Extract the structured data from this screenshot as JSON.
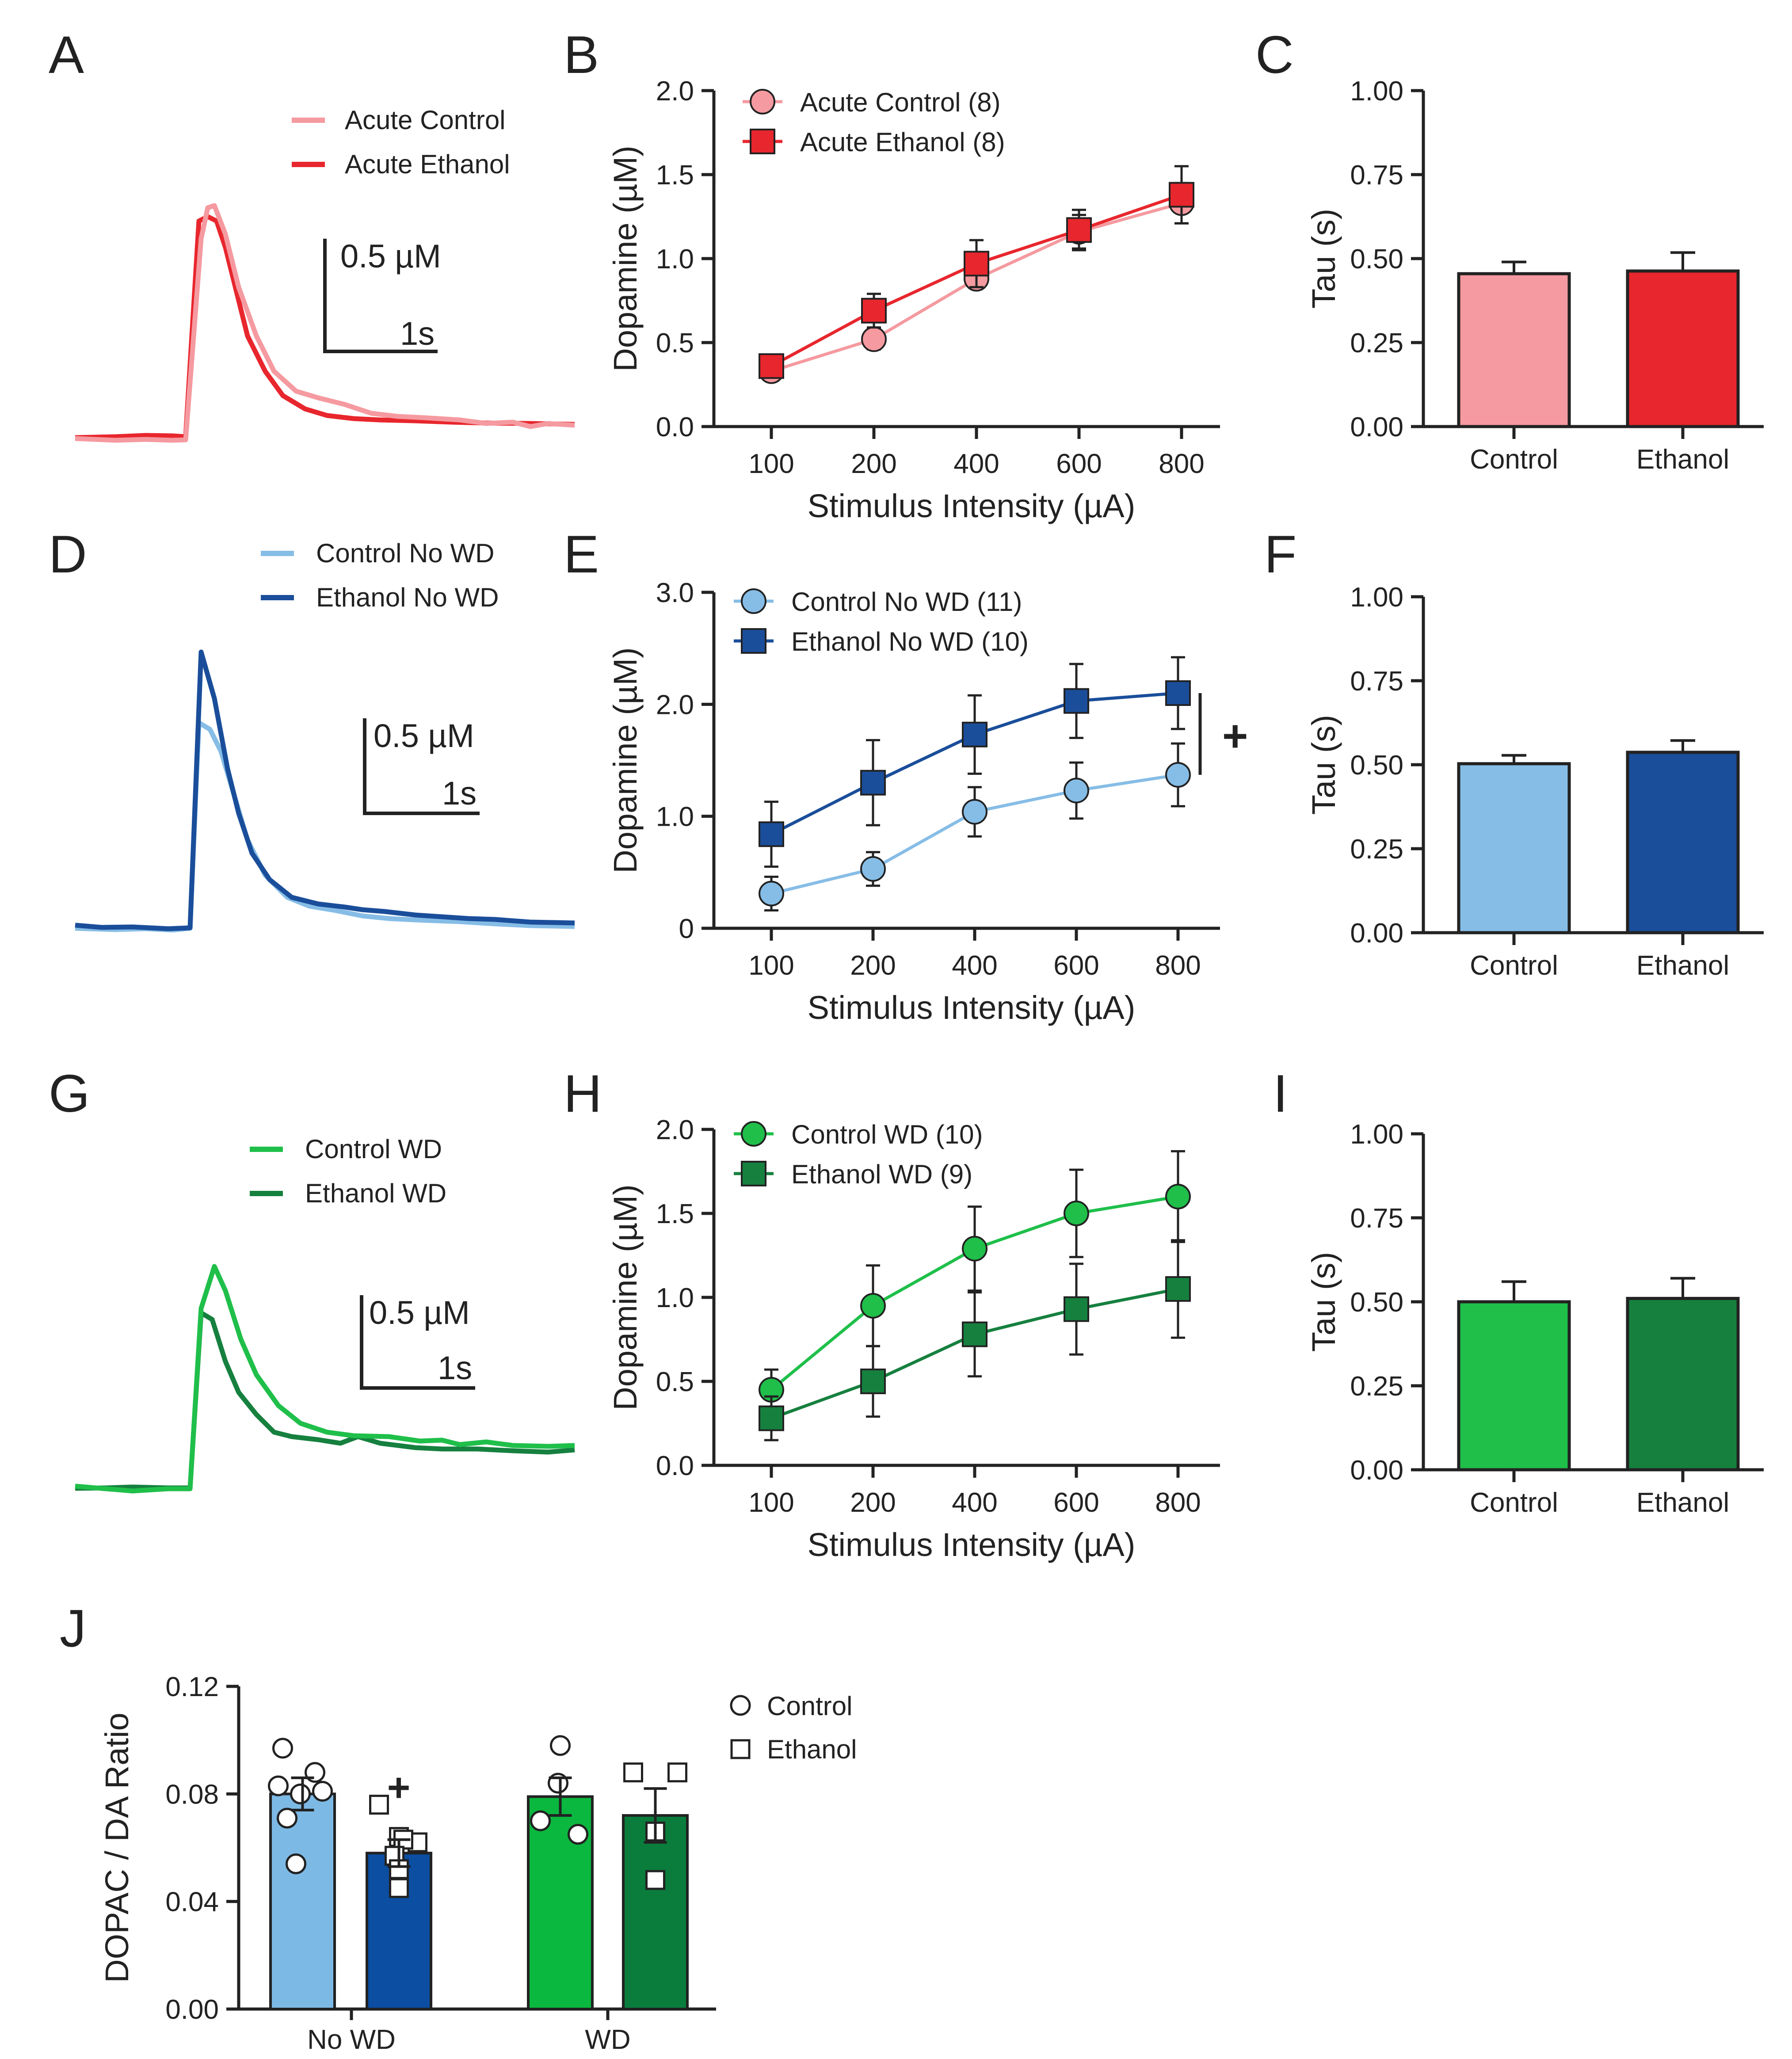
{
  "colors": {
    "acute_control": "#f59aa0",
    "acute_ethanol": "#e8262d",
    "nowd_control": "#86bde6",
    "nowd_ethanol": "#1a4e9a",
    "wd_control": "#1fbf4a",
    "wd_ethanol": "#16803f",
    "j_control": "#7db9e5",
    "j_ethanol": "#0b4ea2",
    "j_wd_control": "#0ab83f",
    "j_wd_ethanol": "#0a7d3c"
  },
  "panel_labels": [
    "A",
    "B",
    "C",
    "D",
    "E",
    "F",
    "G",
    "H",
    "I",
    "J"
  ],
  "traces": [
    {
      "panel": "A",
      "legend": [
        "Acute Control",
        "Acute Ethanol"
      ],
      "scale_y": "0.5 µM",
      "scale_x": "1s"
    },
    {
      "panel": "D",
      "legend": [
        "Control No WD",
        "Ethanol No WD"
      ],
      "scale_y": "0.5 µM",
      "scale_x": "1s"
    },
    {
      "panel": "G",
      "legend": [
        "Control WD",
        "Ethanol WD"
      ],
      "scale_y": "0.5 µM",
      "scale_x": "1s"
    }
  ],
  "chart_data": [
    {
      "panel": "B",
      "type": "line",
      "categories": [
        "100",
        "200",
        "400",
        "600",
        "800"
      ],
      "ylabel": "Dopamine (µM)",
      "xlabel": "Stimulus Intensity (µA)",
      "ylim": [
        0,
        2.0
      ],
      "yticks": [
        "0.0",
        "0.5",
        "1.0",
        "1.5",
        "2.0"
      ],
      "series": [
        {
          "name": "Acute Control (8)",
          "marker": "circle",
          "values": [
            0.33,
            0.52,
            0.88,
            1.16,
            1.33
          ],
          "err": [
            0.03,
            0.06,
            0.05,
            0.1,
            0.12
          ]
        },
        {
          "name": "Acute Ethanol (8)",
          "marker": "square",
          "values": [
            0.36,
            0.69,
            0.97,
            1.17,
            1.38
          ],
          "err": [
            0.04,
            0.1,
            0.14,
            0.12,
            0.17
          ]
        }
      ],
      "annotation": ""
    },
    {
      "panel": "E",
      "type": "line",
      "categories": [
        "100",
        "200",
        "400",
        "600",
        "800"
      ],
      "ylabel": "Dopamine (µM)",
      "xlabel": "Stimulus Intensity (µA)",
      "ylim": [
        0,
        3.0
      ],
      "yticks": [
        "0",
        "1.0",
        "2.0",
        "3.0"
      ],
      "series": [
        {
          "name": "Control No WD (11)",
          "marker": "circle",
          "values": [
            0.31,
            0.53,
            1.04,
            1.23,
            1.37
          ],
          "err": [
            0.15,
            0.15,
            0.22,
            0.25,
            0.28
          ]
        },
        {
          "name": "Ethanol No WD (10)",
          "marker": "square",
          "values": [
            0.84,
            1.3,
            1.73,
            2.03,
            2.1
          ],
          "err": [
            0.29,
            0.38,
            0.35,
            0.33,
            0.32
          ]
        }
      ],
      "annotation": "+"
    },
    {
      "panel": "H",
      "type": "line",
      "categories": [
        "100",
        "200",
        "400",
        "600",
        "800"
      ],
      "ylabel": "Dopamine (µM)",
      "xlabel": "Stimulus Intensity (µA)",
      "ylim": [
        0,
        2.0
      ],
      "yticks": [
        "0.0",
        "0.5",
        "1.0",
        "1.5",
        "2.0"
      ],
      "series": [
        {
          "name": "Control WD (10)",
          "marker": "circle",
          "values": [
            0.45,
            0.95,
            1.29,
            1.5,
            1.6
          ],
          "err": [
            0.12,
            0.24,
            0.25,
            0.26,
            0.27
          ]
        },
        {
          "name": "Ethanol WD (9)",
          "marker": "square",
          "values": [
            0.28,
            0.5,
            0.78,
            0.93,
            1.05
          ],
          "err": [
            0.13,
            0.21,
            0.25,
            0.27,
            0.29
          ]
        }
      ],
      "annotation": ""
    },
    {
      "panel": "C",
      "type": "bar",
      "categories": [
        "Control",
        "Ethanol"
      ],
      "values": [
        0.455,
        0.463
      ],
      "err": [
        0.035,
        0.055
      ],
      "ylabel": "Tau (s)",
      "ylim": [
        0,
        1.0
      ],
      "yticks": [
        "0.00",
        "0.25",
        "0.50",
        "0.75",
        "1.00"
      ]
    },
    {
      "panel": "F",
      "type": "bar",
      "categories": [
        "Control",
        "Ethanol"
      ],
      "values": [
        0.503,
        0.537
      ],
      "err": [
        0.025,
        0.035
      ],
      "ylabel": "Tau (s)",
      "ylim": [
        0,
        1.0
      ],
      "yticks": [
        "0.00",
        "0.25",
        "0.50",
        "0.75",
        "1.00"
      ]
    },
    {
      "panel": "I",
      "type": "bar",
      "categories": [
        "Control",
        "Ethanol"
      ],
      "values": [
        0.5,
        0.51
      ],
      "err": [
        0.06,
        0.06
      ],
      "ylabel": "Tau (s)",
      "ylim": [
        0,
        1.0
      ],
      "yticks": [
        "0.00",
        "0.25",
        "0.50",
        "0.75",
        "1.00"
      ]
    },
    {
      "panel": "J",
      "type": "bar",
      "groups": [
        "No WD",
        "WD"
      ],
      "ylabel": "DOPAC / DA Ratio",
      "ylim": [
        0,
        0.12
      ],
      "yticks": [
        "0.00",
        "0.04",
        "0.08",
        "0.12"
      ],
      "bars": [
        {
          "group": "No WD",
          "condition": "Control",
          "value": 0.08,
          "err": 0.006,
          "points": [
            0.097,
            0.088,
            0.083,
            0.081,
            0.08,
            0.071,
            0.054
          ]
        },
        {
          "group": "No WD",
          "condition": "Ethanol",
          "value": 0.058,
          "err": 0.005,
          "points": [
            0.076,
            0.064,
            0.062,
            0.063,
            0.057,
            0.052,
            0.045
          ]
        },
        {
          "group": "WD",
          "condition": "Control",
          "value": 0.079,
          "err": 0.007,
          "points": [
            0.098,
            0.084,
            0.07,
            0.065
          ]
        },
        {
          "group": "WD",
          "condition": "Ethanol",
          "value": 0.072,
          "err": 0.01,
          "points": [
            0.088,
            0.088,
            0.066,
            0.048
          ]
        }
      ],
      "legend": [
        "Control",
        "Ethanol"
      ],
      "annotation": "+"
    }
  ]
}
